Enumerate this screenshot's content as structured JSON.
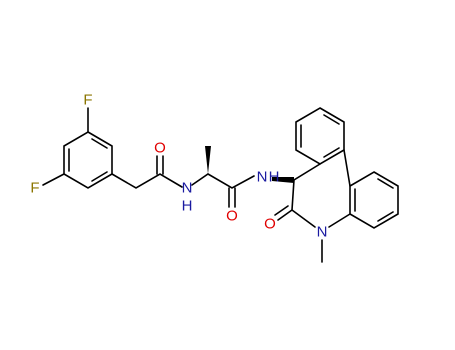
{
  "atoms": [
    {
      "label": "F"
    },
    {
      "label": "F"
    },
    {
      "label": "O"
    },
    {
      "label": "N"
    },
    {
      "label": "H"
    },
    {
      "label": "O"
    },
    {
      "label": "N"
    },
    {
      "label": "H"
    },
    {
      "label": "O"
    },
    {
      "label": "N"
    }
  ]
}
